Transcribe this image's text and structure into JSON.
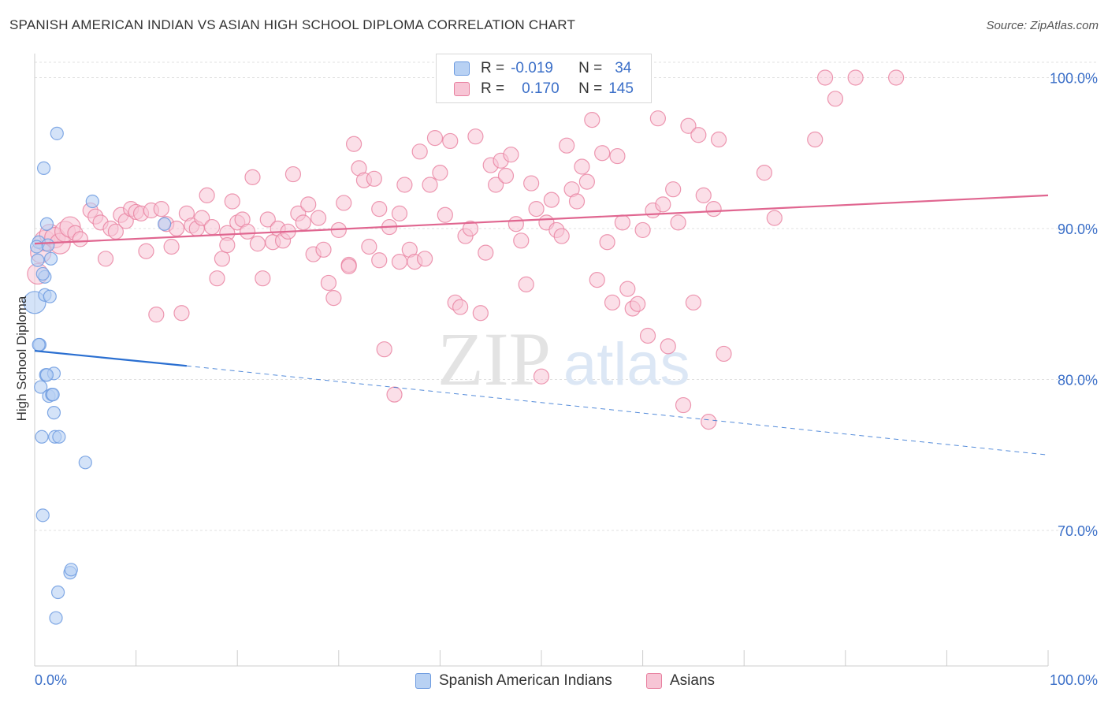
{
  "title": "SPANISH AMERICAN INDIAN VS ASIAN HIGH SCHOOL DIPLOMA CORRELATION CHART",
  "source": "Source: ZipAtlas.com",
  "watermark": {
    "zip": "ZIP",
    "atlas": "atlas"
  },
  "colors": {
    "blue_fill": "#b8d1f3",
    "blue_stroke": "#6d9be0",
    "blue_line": "#2a6fd1",
    "pink_fill": "#f7c5d5",
    "pink_stroke": "#e8809f",
    "pink_line": "#e06690",
    "tick_label": "#3b6fc8",
    "grid": "#e0e0e0"
  },
  "legend": {
    "rows": [
      {
        "r_label": "R =",
        "r_value": "-0.019",
        "n_label": "N =",
        "n_value": "34"
      },
      {
        "r_label": "R =",
        "r_value": "0.170",
        "n_label": "N =",
        "n_value": "145"
      }
    ]
  },
  "chart_data": {
    "type": "scatter",
    "title": "SPANISH AMERICAN INDIAN VS ASIAN HIGH SCHOOL DIPLOMA CORRELATION CHART",
    "xlabel": "",
    "ylabel": "High School Diploma",
    "xlim": [
      0,
      100
    ],
    "ylim": [
      60.5,
      103
    ],
    "x_tick_labels": [
      "0.0%",
      "100.0%"
    ],
    "y_ticks": [
      70,
      80,
      90,
      100
    ],
    "y_tick_labels": [
      "70.0%",
      "80.0%",
      "90.0%",
      "100.0%"
    ],
    "grid": true,
    "legend_position": "bottom",
    "series": [
      {
        "name": "Spanish American Indians",
        "color": "#6d9be0",
        "r": -0.019,
        "n": 34,
        "trend": {
          "x0": 0,
          "y0": 81.9,
          "x1": 15,
          "y1": 80.9,
          "dashed_to_x": 100,
          "dashed_to_y": 75.0
        },
        "points": [
          [
            0.0,
            85.1
          ],
          [
            0.3,
            87.9
          ],
          [
            0.4,
            89.1
          ],
          [
            0.5,
            82.3
          ],
          [
            0.6,
            79.5
          ],
          [
            0.7,
            76.2
          ],
          [
            0.8,
            71.0
          ],
          [
            0.9,
            94.0
          ],
          [
            1.0,
            86.8
          ],
          [
            1.0,
            85.6
          ],
          [
            1.1,
            80.3
          ],
          [
            1.2,
            90.3
          ],
          [
            1.3,
            88.9
          ],
          [
            1.4,
            78.9
          ],
          [
            1.6,
            88.0
          ],
          [
            1.7,
            79.0
          ],
          [
            1.8,
            79.0
          ],
          [
            1.9,
            80.4
          ],
          [
            1.9,
            77.8
          ],
          [
            2.0,
            76.2
          ],
          [
            2.1,
            64.2
          ],
          [
            2.2,
            96.3
          ],
          [
            2.3,
            65.9
          ],
          [
            2.4,
            76.2
          ],
          [
            3.5,
            67.2
          ],
          [
            3.6,
            67.4
          ],
          [
            5.0,
            74.5
          ],
          [
            5.7,
            91.8
          ],
          [
            12.8,
            90.3
          ],
          [
            0.2,
            88.8
          ],
          [
            0.4,
            82.3
          ],
          [
            1.5,
            85.5
          ],
          [
            0.8,
            87.0
          ],
          [
            1.2,
            80.3
          ]
        ]
      },
      {
        "name": "Asians",
        "color": "#e8809f",
        "r": 0.17,
        "n": 145,
        "trend": {
          "x0": 0,
          "y0": 89.0,
          "x1": 100,
          "y1": 92.2
        },
        "points": [
          [
            0.3,
            87.0
          ],
          [
            0.6,
            88.4
          ],
          [
            1.0,
            89.2
          ],
          [
            1.5,
            89.6
          ],
          [
            2.0,
            89.4
          ],
          [
            2.5,
            89.0
          ],
          [
            3.0,
            89.8
          ],
          [
            3.5,
            90.1
          ],
          [
            4.0,
            89.7
          ],
          [
            4.5,
            89.3
          ],
          [
            5.5,
            91.2
          ],
          [
            6.0,
            90.8
          ],
          [
            6.5,
            90.4
          ],
          [
            7.0,
            88.0
          ],
          [
            7.5,
            90.0
          ],
          [
            8.0,
            89.8
          ],
          [
            8.5,
            90.9
          ],
          [
            9.0,
            90.5
          ],
          [
            9.5,
            91.3
          ],
          [
            10.0,
            91.1
          ],
          [
            10.5,
            91.0
          ],
          [
            11.0,
            88.5
          ],
          [
            11.5,
            91.2
          ],
          [
            12.0,
            84.3
          ],
          [
            12.5,
            91.3
          ],
          [
            13.0,
            90.3
          ],
          [
            13.5,
            88.8
          ],
          [
            14.0,
            90.0
          ],
          [
            14.5,
            84.4
          ],
          [
            15.0,
            91.0
          ],
          [
            15.5,
            90.2
          ],
          [
            16.0,
            90.0
          ],
          [
            16.5,
            90.7
          ],
          [
            17.0,
            92.2
          ],
          [
            17.5,
            90.1
          ],
          [
            18.0,
            86.7
          ],
          [
            18.5,
            88.0
          ],
          [
            19.0,
            89.7
          ],
          [
            19.5,
            91.8
          ],
          [
            20.0,
            90.4
          ],
          [
            20.5,
            90.6
          ],
          [
            21.0,
            89.8
          ],
          [
            21.5,
            93.4
          ],
          [
            22.0,
            89.0
          ],
          [
            22.5,
            86.7
          ],
          [
            23.0,
            90.6
          ],
          [
            23.5,
            89.1
          ],
          [
            24.0,
            90.0
          ],
          [
            24.5,
            89.2
          ],
          [
            25.0,
            89.8
          ],
          [
            25.5,
            93.6
          ],
          [
            26.0,
            91.0
          ],
          [
            26.5,
            90.4
          ],
          [
            27.0,
            91.6
          ],
          [
            27.5,
            88.3
          ],
          [
            28.0,
            90.7
          ],
          [
            28.5,
            88.6
          ],
          [
            29.0,
            86.4
          ],
          [
            29.5,
            85.4
          ],
          [
            30.0,
            89.9
          ],
          [
            30.5,
            91.7
          ],
          [
            31.0,
            87.6
          ],
          [
            31.5,
            95.6
          ],
          [
            32.0,
            94.0
          ],
          [
            32.5,
            93.2
          ],
          [
            33.0,
            88.8
          ],
          [
            33.5,
            93.3
          ],
          [
            34.0,
            91.3
          ],
          [
            34.5,
            82.0
          ],
          [
            35.0,
            90.1
          ],
          [
            35.5,
            79.0
          ],
          [
            36.0,
            87.8
          ],
          [
            36.5,
            92.9
          ],
          [
            37.0,
            88.6
          ],
          [
            37.5,
            87.8
          ],
          [
            38.0,
            95.1
          ],
          [
            38.5,
            88.0
          ],
          [
            39.0,
            92.9
          ],
          [
            39.5,
            96.0
          ],
          [
            40.0,
            93.7
          ],
          [
            40.5,
            90.9
          ],
          [
            41.0,
            95.8
          ],
          [
            41.5,
            85.1
          ],
          [
            42.0,
            84.8
          ],
          [
            42.5,
            89.5
          ],
          [
            43.0,
            90.0
          ],
          [
            43.5,
            96.1
          ],
          [
            44.0,
            84.4
          ],
          [
            44.5,
            88.4
          ],
          [
            45.0,
            94.2
          ],
          [
            45.5,
            92.9
          ],
          [
            46.0,
            94.5
          ],
          [
            46.5,
            93.5
          ],
          [
            47.0,
            94.9
          ],
          [
            47.5,
            90.3
          ],
          [
            48.0,
            89.2
          ],
          [
            48.5,
            86.3
          ],
          [
            49.0,
            93.0
          ],
          [
            49.5,
            91.3
          ],
          [
            50.0,
            80.2
          ],
          [
            50.5,
            90.4
          ],
          [
            51.0,
            91.9
          ],
          [
            51.5,
            89.9
          ],
          [
            52.0,
            89.5
          ],
          [
            52.5,
            95.5
          ],
          [
            53.0,
            92.6
          ],
          [
            53.5,
            91.8
          ],
          [
            54.0,
            94.1
          ],
          [
            54.5,
            93.1
          ],
          [
            55.0,
            97.2
          ],
          [
            55.5,
            86.6
          ],
          [
            56.0,
            95.0
          ],
          [
            56.5,
            89.1
          ],
          [
            57.0,
            85.1
          ],
          [
            57.5,
            94.8
          ],
          [
            58.0,
            90.4
          ],
          [
            58.5,
            86.0
          ],
          [
            59.0,
            84.7
          ],
          [
            59.5,
            85.0
          ],
          [
            60.0,
            89.9
          ],
          [
            60.5,
            82.9
          ],
          [
            61.0,
            91.2
          ],
          [
            61.5,
            97.3
          ],
          [
            62.0,
            91.6
          ],
          [
            62.5,
            82.2
          ],
          [
            63.0,
            92.6
          ],
          [
            63.5,
            90.4
          ],
          [
            64.0,
            78.3
          ],
          [
            64.5,
            96.8
          ],
          [
            65.0,
            85.1
          ],
          [
            65.5,
            96.2
          ],
          [
            66.0,
            92.2
          ],
          [
            66.5,
            77.2
          ],
          [
            67.0,
            91.3
          ],
          [
            67.5,
            95.9
          ],
          [
            68.0,
            81.7
          ],
          [
            72.0,
            93.7
          ],
          [
            73.0,
            90.7
          ],
          [
            77.0,
            95.9
          ],
          [
            78.0,
            100.0
          ],
          [
            79.0,
            98.6
          ],
          [
            81.0,
            100.0
          ],
          [
            85.0,
            100.0
          ],
          [
            36.0,
            91.0
          ],
          [
            34.0,
            87.9
          ],
          [
            31.0,
            87.5
          ],
          [
            19.0,
            88.9
          ]
        ]
      }
    ]
  },
  "bottom_legend": [
    "Spanish American Indians",
    "Asians"
  ]
}
